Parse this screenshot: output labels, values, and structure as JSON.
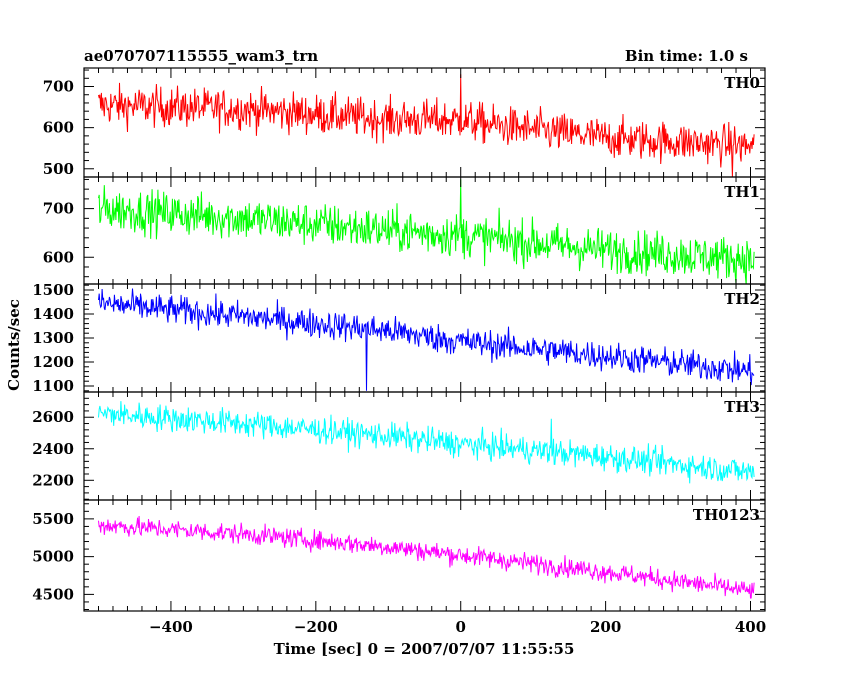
{
  "chart_data": {
    "type": "line",
    "title": "ae070707115555_wam3_trn",
    "subtitle": "Bin time: 1.0 s",
    "xlabel": "Time [sec] 0 = 2007/07/07 11:55:55",
    "ylabel": "Counts/sec",
    "xlim": [
      -520,
      420
    ],
    "x_ticks": [
      -400,
      -200,
      0,
      200,
      400
    ],
    "x_tick_labels": [
      "−400",
      "−200",
      "0",
      "200",
      "400"
    ],
    "x_range": [
      -500,
      405
    ],
    "bin_time": 1.0,
    "grid": false,
    "panels": [
      {
        "name": "TH0",
        "color": "#ff0000",
        "ylim": [
          480,
          745
        ],
        "y_ticks": [
          500,
          600,
          700
        ],
        "trend": [
          {
            "x": -500,
            "y": 655
          },
          {
            "x": -300,
            "y": 645
          },
          {
            "x": -100,
            "y": 620
          },
          {
            "x": 0,
            "y": 618
          },
          {
            "x": 50,
            "y": 605
          },
          {
            "x": 200,
            "y": 575
          },
          {
            "x": 405,
            "y": 555
          }
        ],
        "noise": 24,
        "spikes": [
          {
            "x": 0,
            "y": 730
          },
          {
            "x": 375,
            "y": 480
          }
        ]
      },
      {
        "name": "TH1",
        "color": "#00ff00",
        "ylim": [
          545,
          765
        ],
        "y_ticks": [
          600,
          700
        ],
        "trend": [
          {
            "x": -500,
            "y": 700
          },
          {
            "x": -300,
            "y": 680
          },
          {
            "x": -100,
            "y": 655
          },
          {
            "x": 0,
            "y": 645
          },
          {
            "x": 200,
            "y": 615
          },
          {
            "x": 405,
            "y": 595
          }
        ],
        "noise": 22,
        "spikes": [
          {
            "x": 0,
            "y": 760
          }
        ]
      },
      {
        "name": "TH2",
        "color": "#0000ff",
        "ylim": [
          1075,
          1525
        ],
        "y_ticks": [
          1100,
          1200,
          1300,
          1400,
          1500
        ],
        "trend": [
          {
            "x": -500,
            "y": 1445
          },
          {
            "x": -300,
            "y": 1390
          },
          {
            "x": -100,
            "y": 1330
          },
          {
            "x": 0,
            "y": 1285
          },
          {
            "x": 200,
            "y": 1225
          },
          {
            "x": 405,
            "y": 1160
          }
        ],
        "noise": 30,
        "spikes": [
          {
            "x": -130,
            "y": 1080
          }
        ]
      },
      {
        "name": "TH3",
        "color": "#00ffff",
        "ylim": [
          2075,
          2760
        ],
        "y_ticks": [
          2200,
          2400,
          2600
        ],
        "trend": [
          {
            "x": -500,
            "y": 2625
          },
          {
            "x": -300,
            "y": 2560
          },
          {
            "x": -100,
            "y": 2480
          },
          {
            "x": 0,
            "y": 2430
          },
          {
            "x": 200,
            "y": 2350
          },
          {
            "x": 405,
            "y": 2250
          }
        ],
        "noise": 42,
        "spikes": [
          {
            "x": 125,
            "y": 2590
          }
        ]
      },
      {
        "name": "TH0123",
        "color": "#ff00ff",
        "ylim": [
          4280,
          5750
        ],
        "y_ticks": [
          4500,
          5000,
          5500
        ],
        "trend": [
          {
            "x": -500,
            "y": 5420
          },
          {
            "x": -300,
            "y": 5300
          },
          {
            "x": -100,
            "y": 5130
          },
          {
            "x": 0,
            "y": 5020
          },
          {
            "x": 200,
            "y": 4800
          },
          {
            "x": 405,
            "y": 4540
          }
        ],
        "noise": 65,
        "spikes": []
      }
    ]
  }
}
